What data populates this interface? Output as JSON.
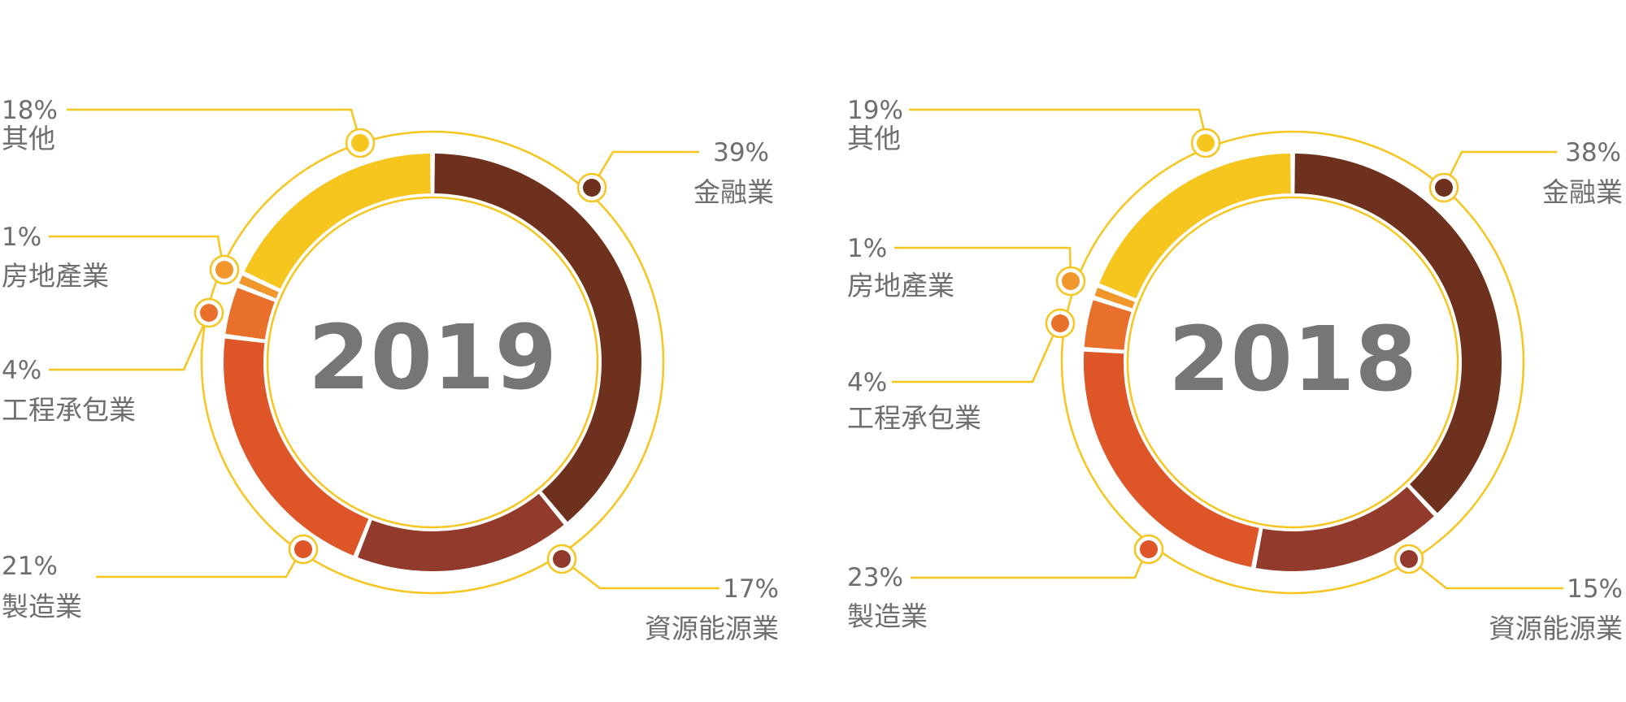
{
  "colors": {
    "ring_outline": "#F6C51E",
    "other": "#F6C51E",
    "real_estate": "#F0962A",
    "engineering": "#E8702B",
    "manufacturing": "#DE5627",
    "resources": "#923A2C",
    "finance": "#6E311D",
    "text": "#6E6E6E",
    "year": "#767676"
  },
  "chart_data": [
    {
      "type": "pie",
      "title": "2019",
      "series": [
        {
          "name": "金融業",
          "percent_label": "39%",
          "value": 39,
          "color": "#6E311D"
        },
        {
          "name": "資源能源業",
          "percent_label": "17%",
          "value": 17,
          "color": "#923A2C"
        },
        {
          "name": "製造業",
          "percent_label": "21%",
          "value": 21,
          "color": "#DE5627"
        },
        {
          "name": "工程承包業",
          "percent_label": "4%",
          "value": 4,
          "color": "#E8702B"
        },
        {
          "name": "房地產業",
          "percent_label": "1%",
          "value": 1,
          "color": "#F0962A"
        },
        {
          "name": "其他",
          "percent_label": "18%",
          "value": 18,
          "color": "#F6C51E"
        }
      ]
    },
    {
      "type": "pie",
      "title": "2018",
      "series": [
        {
          "name": "金融業",
          "percent_label": "38%",
          "value": 38,
          "color": "#6E311D"
        },
        {
          "name": "資源能源業",
          "percent_label": "15%",
          "value": 15,
          "color": "#923A2C"
        },
        {
          "name": "製造業",
          "percent_label": "23%",
          "value": 23,
          "color": "#DE5627"
        },
        {
          "name": "工程承包業",
          "percent_label": "4%",
          "value": 4,
          "color": "#E8702B"
        },
        {
          "name": "房地產業",
          "percent_label": "1%",
          "value": 1,
          "color": "#F0962A"
        },
        {
          "name": "其他",
          "percent_label": "19%",
          "value": 19,
          "color": "#F6C51E"
        }
      ]
    }
  ]
}
